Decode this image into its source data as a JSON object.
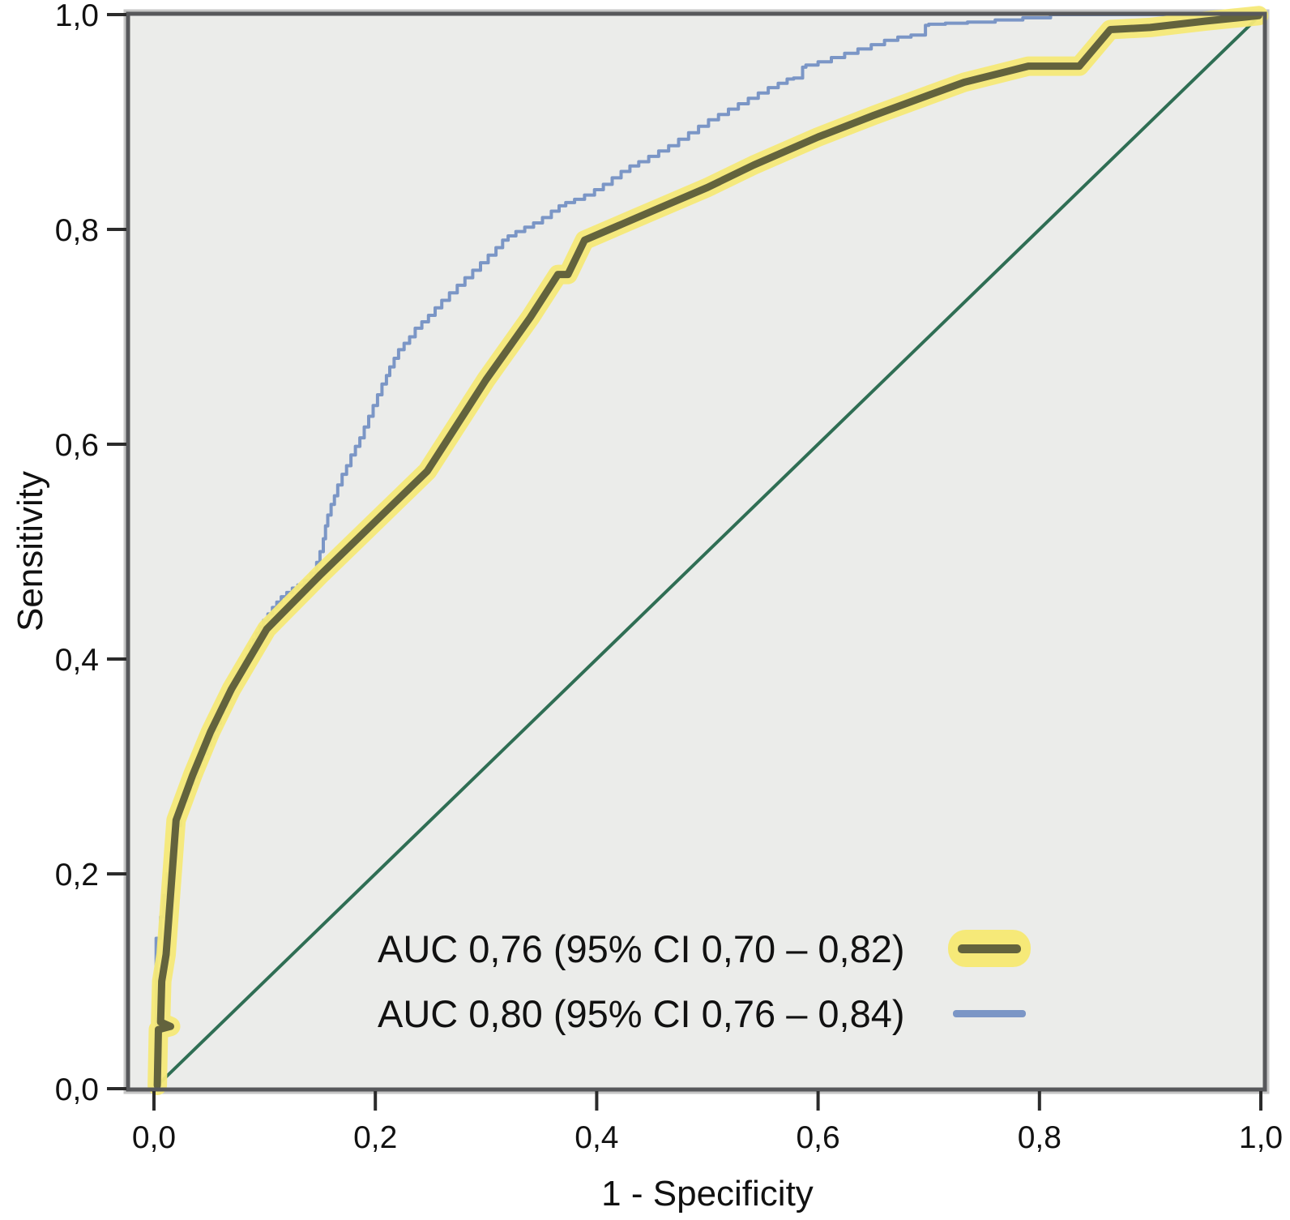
{
  "chart_data": {
    "type": "line",
    "subtype": "roc-curve",
    "title": "",
    "xlabel": "1 - Specificity",
    "ylabel": "Sensitivity",
    "xlim": [
      0,
      1
    ],
    "ylim": [
      0,
      1
    ],
    "grid": false,
    "decimal_separator": ",",
    "x_tick_labels": [
      "0,0",
      "0,2",
      "0,4",
      "0,6",
      "0,8",
      "1,0"
    ],
    "y_tick_labels": [
      "0,0",
      "0,2",
      "0,4",
      "0,6",
      "0,8",
      "1,0"
    ],
    "tick_values": [
      0,
      0.2,
      0.4,
      0.6,
      0.8,
      1.0
    ],
    "plot_background": "#ebecea",
    "frame_color": "#57585b",
    "legend_position": "inside-lower-right",
    "series": [
      {
        "name": "AUC 0,76 (95% CI 0,70 – 0,82)",
        "auc": "0,76",
        "ci": "0,70 – 0,82",
        "style": "thick-olive-with-yellow-glow",
        "color": "#63633d",
        "glow_color": "#f6e978",
        "stepped": false,
        "points": [
          [
            0.003,
            0.003
          ],
          [
            0.004,
            0.055
          ],
          [
            0.015,
            0.058
          ],
          [
            0.006,
            0.062
          ],
          [
            0.007,
            0.1
          ],
          [
            0.011,
            0.125
          ],
          [
            0.02,
            0.25
          ],
          [
            0.035,
            0.292
          ],
          [
            0.051,
            0.332
          ],
          [
            0.07,
            0.372
          ],
          [
            0.102,
            0.428
          ],
          [
            0.15,
            0.478
          ],
          [
            0.19,
            0.518
          ],
          [
            0.247,
            0.575
          ],
          [
            0.3,
            0.66
          ],
          [
            0.34,
            0.718
          ],
          [
            0.365,
            0.758
          ],
          [
            0.374,
            0.758
          ],
          [
            0.389,
            0.79
          ],
          [
            0.45,
            0.817
          ],
          [
            0.5,
            0.839
          ],
          [
            0.542,
            0.86
          ],
          [
            0.6,
            0.886
          ],
          [
            0.65,
            0.906
          ],
          [
            0.7,
            0.925
          ],
          [
            0.732,
            0.937
          ],
          [
            0.79,
            0.952
          ],
          [
            0.836,
            0.952
          ],
          [
            0.864,
            0.986
          ],
          [
            0.9,
            0.988
          ],
          [
            0.95,
            0.994
          ],
          [
            0.998,
            0.999
          ]
        ]
      },
      {
        "name": "AUC 0,80 (95% CI 0,76 – 0,84)",
        "auc": "0,80",
        "ci": "0,76 – 0,84",
        "style": "thin-blue-stepped",
        "color": "#7b96c6",
        "stepped": true,
        "points": [
          [
            0.002,
            0.0
          ],
          [
            0.002,
            0.13
          ],
          [
            0.006,
            0.14
          ],
          [
            0.006,
            0.155
          ],
          [
            0.009,
            0.16
          ],
          [
            0.009,
            0.175
          ],
          [
            0.012,
            0.18
          ],
          [
            0.012,
            0.195
          ],
          [
            0.015,
            0.2
          ],
          [
            0.015,
            0.215
          ],
          [
            0.018,
            0.22
          ],
          [
            0.018,
            0.232
          ],
          [
            0.021,
            0.238
          ],
          [
            0.024,
            0.245
          ],
          [
            0.024,
            0.256
          ],
          [
            0.027,
            0.262
          ],
          [
            0.03,
            0.268
          ],
          [
            0.033,
            0.278
          ],
          [
            0.036,
            0.284
          ],
          [
            0.039,
            0.29
          ],
          [
            0.042,
            0.3
          ],
          [
            0.045,
            0.306
          ],
          [
            0.048,
            0.312
          ],
          [
            0.051,
            0.32
          ],
          [
            0.054,
            0.326
          ],
          [
            0.057,
            0.334
          ],
          [
            0.06,
            0.34
          ],
          [
            0.063,
            0.35
          ],
          [
            0.066,
            0.356
          ],
          [
            0.069,
            0.362
          ],
          [
            0.072,
            0.37
          ],
          [
            0.075,
            0.376
          ],
          [
            0.078,
            0.384
          ],
          [
            0.081,
            0.39
          ],
          [
            0.084,
            0.398
          ],
          [
            0.087,
            0.404
          ],
          [
            0.09,
            0.412
          ],
          [
            0.093,
            0.418
          ],
          [
            0.096,
            0.424
          ],
          [
            0.099,
            0.43
          ],
          [
            0.103,
            0.436
          ],
          [
            0.107,
            0.442
          ],
          [
            0.111,
            0.448
          ],
          [
            0.115,
            0.453
          ],
          [
            0.12,
            0.458
          ],
          [
            0.125,
            0.462
          ],
          [
            0.13,
            0.466
          ],
          [
            0.136,
            0.469
          ],
          [
            0.142,
            0.473
          ],
          [
            0.147,
            0.48
          ],
          [
            0.15,
            0.49
          ],
          [
            0.153,
            0.5
          ],
          [
            0.155,
            0.512
          ],
          [
            0.157,
            0.524
          ],
          [
            0.16,
            0.534
          ],
          [
            0.163,
            0.544
          ],
          [
            0.166,
            0.552
          ],
          [
            0.17,
            0.562
          ],
          [
            0.174,
            0.572
          ],
          [
            0.178,
            0.58
          ],
          [
            0.182,
            0.59
          ],
          [
            0.186,
            0.598
          ],
          [
            0.19,
            0.606
          ],
          [
            0.194,
            0.616
          ],
          [
            0.198,
            0.626
          ],
          [
            0.202,
            0.636
          ],
          [
            0.206,
            0.646
          ],
          [
            0.21,
            0.656
          ],
          [
            0.213,
            0.664
          ],
          [
            0.217,
            0.672
          ],
          [
            0.221,
            0.68
          ],
          [
            0.226,
            0.688
          ],
          [
            0.231,
            0.694
          ],
          [
            0.236,
            0.7
          ],
          [
            0.242,
            0.708
          ],
          [
            0.248,
            0.714
          ],
          [
            0.254,
            0.72
          ],
          [
            0.26,
            0.727
          ],
          [
            0.267,
            0.734
          ],
          [
            0.274,
            0.741
          ],
          [
            0.281,
            0.748
          ],
          [
            0.288,
            0.755
          ],
          [
            0.295,
            0.762
          ],
          [
            0.302,
            0.769
          ],
          [
            0.309,
            0.776
          ],
          [
            0.315,
            0.783
          ],
          [
            0.32,
            0.79
          ],
          [
            0.327,
            0.794
          ],
          [
            0.335,
            0.798
          ],
          [
            0.343,
            0.802
          ],
          [
            0.351,
            0.806
          ],
          [
            0.359,
            0.811
          ],
          [
            0.366,
            0.817
          ],
          [
            0.372,
            0.822
          ],
          [
            0.38,
            0.825
          ],
          [
            0.389,
            0.828
          ],
          [
            0.398,
            0.832
          ],
          [
            0.406,
            0.837
          ],
          [
            0.414,
            0.842
          ],
          [
            0.422,
            0.848
          ],
          [
            0.43,
            0.854
          ],
          [
            0.438,
            0.859
          ],
          [
            0.447,
            0.863
          ],
          [
            0.456,
            0.868
          ],
          [
            0.465,
            0.873
          ],
          [
            0.474,
            0.878
          ],
          [
            0.483,
            0.884
          ],
          [
            0.492,
            0.89
          ],
          [
            0.501,
            0.896
          ],
          [
            0.51,
            0.902
          ],
          [
            0.519,
            0.907
          ],
          [
            0.528,
            0.912
          ],
          [
            0.537,
            0.917
          ],
          [
            0.546,
            0.922
          ],
          [
            0.555,
            0.927
          ],
          [
            0.564,
            0.932
          ],
          [
            0.572,
            0.936
          ],
          [
            0.578,
            0.94
          ],
          [
            0.586,
            0.941
          ],
          [
            0.589,
            0.951
          ],
          [
            0.6,
            0.953
          ],
          [
            0.612,
            0.956
          ],
          [
            0.624,
            0.96
          ],
          [
            0.636,
            0.964
          ],
          [
            0.648,
            0.968
          ],
          [
            0.66,
            0.972
          ],
          [
            0.672,
            0.976
          ],
          [
            0.684,
            0.979
          ],
          [
            0.697,
            0.981
          ],
          [
            0.7,
            0.99
          ],
          [
            0.715,
            0.991
          ],
          [
            0.735,
            0.992
          ],
          [
            0.76,
            0.993
          ],
          [
            0.785,
            0.995
          ],
          [
            0.81,
            0.997
          ],
          [
            0.828,
            1.0
          ],
          [
            1.0,
            1.0
          ]
        ]
      },
      {
        "name": "reference-diagonal",
        "style": "thin-green",
        "color": "#2f6e54",
        "stepped": false,
        "points": [
          [
            0.0,
            0.0
          ],
          [
            1.0,
            1.0
          ]
        ]
      }
    ]
  },
  "legend": {
    "items": [
      {
        "label": "AUC 0,76 (95% CI 0,70 – 0,82)",
        "swatch": "yellow-glow-olive-line"
      },
      {
        "label": "AUC 0,80 (95% CI 0,76 – 0,84)",
        "swatch": "blue-line"
      }
    ]
  },
  "axes": {
    "x_title": "1 - Specificity",
    "y_title": "Sensitivity"
  },
  "colors": {
    "plot_background": "#ebecea",
    "frame": "#57585b",
    "tick": "#2b2b2b",
    "text": "#111111",
    "curve_main": "#63633d",
    "curve_main_glow": "#f6e978",
    "curve_secondary": "#7b96c6",
    "reference_line": "#2f6e54"
  }
}
